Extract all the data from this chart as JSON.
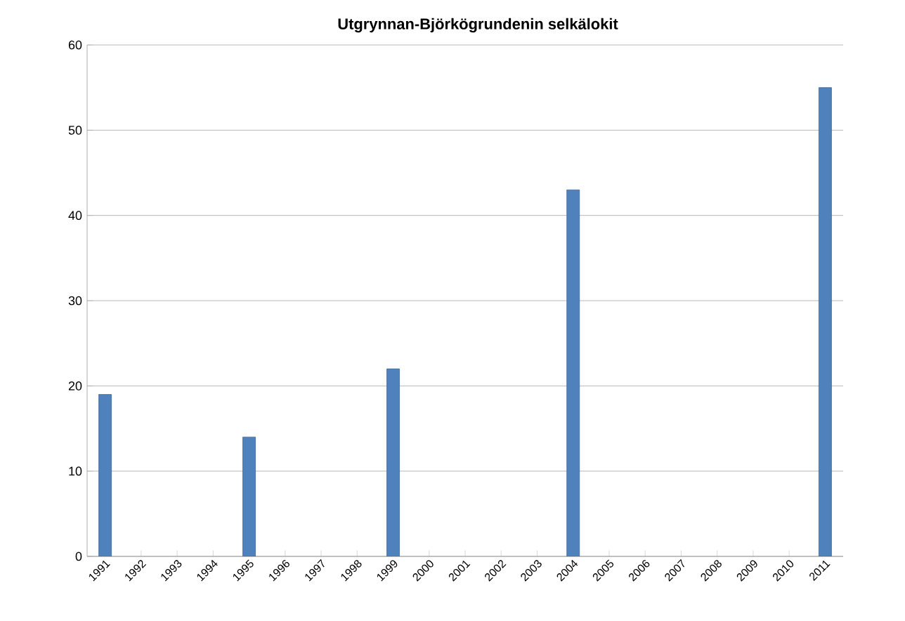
{
  "chart_data": {
    "type": "bar",
    "title": "Utgrynnan-Björkögrundenin selkälokit",
    "categories": [
      "1991",
      "1992",
      "1993",
      "1994",
      "1995",
      "1996",
      "1997",
      "1998",
      "1999",
      "2000",
      "2001",
      "2002",
      "2003",
      "2004",
      "2005",
      "2006",
      "2007",
      "2008",
      "2009",
      "2010",
      "2011"
    ],
    "values": [
      19,
      null,
      null,
      null,
      14,
      null,
      null,
      null,
      22,
      null,
      null,
      null,
      null,
      43,
      null,
      null,
      null,
      null,
      null,
      null,
      55
    ],
    "color": "#4f81bd",
    "ylim": [
      0,
      60
    ],
    "yticks": [
      0,
      10,
      20,
      30,
      40,
      50,
      60
    ],
    "grid": "y"
  }
}
